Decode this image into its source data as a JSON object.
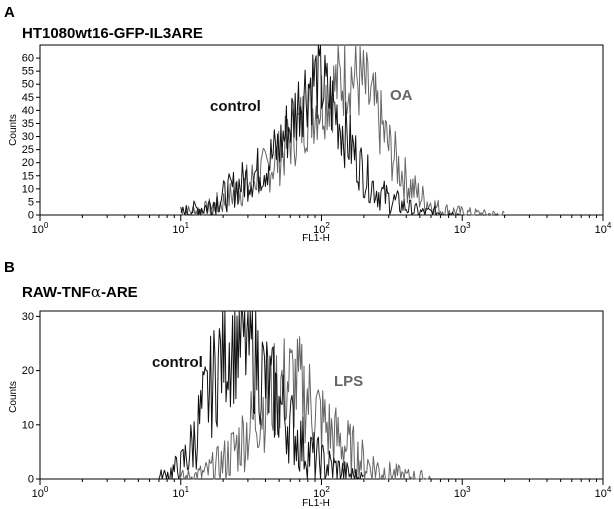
{
  "colors": {
    "control": "#111111",
    "treated": "#666666"
  },
  "chart_data": [
    {
      "panel": "A",
      "title": "HT1080wt16-GFP-IL3ARE",
      "type": "line",
      "xlabel": "FL1-H",
      "ylabel": "Counts",
      "xscale": "log",
      "xlim": [
        1,
        10000
      ],
      "ylim": [
        0,
        65
      ],
      "x_ticks": [
        {
          "base": "10",
          "exp": "0"
        },
        {
          "base": "10",
          "exp": "1"
        },
        {
          "base": "10",
          "exp": "2"
        },
        {
          "base": "10",
          "exp": "3"
        },
        {
          "base": "10",
          "exp": "4"
        }
      ],
      "y_ticks": [
        "0",
        "5",
        "10",
        "15",
        "20",
        "25",
        "30",
        "35",
        "40",
        "45",
        "50",
        "55",
        "60"
      ],
      "series": [
        {
          "name": "control",
          "color": "#111111",
          "x": [
            10,
            15,
            20,
            25,
            30,
            40,
            50,
            60,
            70,
            80,
            90,
            100,
            120,
            150,
            200,
            250,
            300,
            400,
            500,
            700,
            1000
          ],
          "y": [
            1,
            3,
            7,
            11,
            14,
            19,
            26,
            35,
            44,
            50,
            52,
            50,
            42,
            30,
            16,
            9,
            6,
            3,
            1,
            1,
            0
          ]
        },
        {
          "name": "OA",
          "color": "#666666",
          "x": [
            10,
            15,
            20,
            25,
            30,
            40,
            50,
            60,
            70,
            80,
            100,
            120,
            150,
            180,
            200,
            250,
            300,
            400,
            500,
            700,
            1000,
            2000
          ],
          "y": [
            1,
            2,
            5,
            9,
            12,
            17,
            22,
            29,
            34,
            39,
            44,
            48,
            54,
            52,
            49,
            38,
            26,
            13,
            7,
            2,
            1,
            0
          ]
        }
      ]
    },
    {
      "panel": "B",
      "title_prefix": "RAW-TNF",
      "title_greek": "α",
      "title_suffix": "-ARE",
      "type": "line",
      "xlabel": "FL1-H",
      "ylabel": "Counts",
      "xscale": "log",
      "xlim": [
        1,
        10000
      ],
      "ylim": [
        0,
        31
      ],
      "x_ticks": [
        {
          "base": "10",
          "exp": "0"
        },
        {
          "base": "10",
          "exp": "1"
        },
        {
          "base": "10",
          "exp": "2"
        },
        {
          "base": "10",
          "exp": "3"
        },
        {
          "base": "10",
          "exp": "4"
        }
      ],
      "y_ticks": [
        "0",
        "10",
        "20",
        "30"
      ],
      "series": [
        {
          "name": "control",
          "color": "#111111",
          "x": [
            7,
            10,
            12,
            15,
            18,
            20,
            25,
            30,
            35,
            40,
            50,
            60,
            70,
            80,
            100,
            150,
            200
          ],
          "y": [
            0,
            2,
            6,
            14,
            20,
            24,
            26,
            25,
            22,
            18,
            14,
            10,
            7,
            5,
            3,
            1,
            0
          ]
        },
        {
          "name": "LPS",
          "color": "#666666",
          "x": [
            10,
            15,
            20,
            25,
            30,
            35,
            40,
            50,
            60,
            70,
            80,
            100,
            120,
            150,
            200,
            300,
            500,
            600
          ],
          "y": [
            0,
            1,
            3,
            6,
            9,
            12,
            14,
            17,
            18,
            17,
            15,
            11,
            8,
            6,
            3,
            1,
            0,
            0
          ]
        }
      ]
    }
  ]
}
